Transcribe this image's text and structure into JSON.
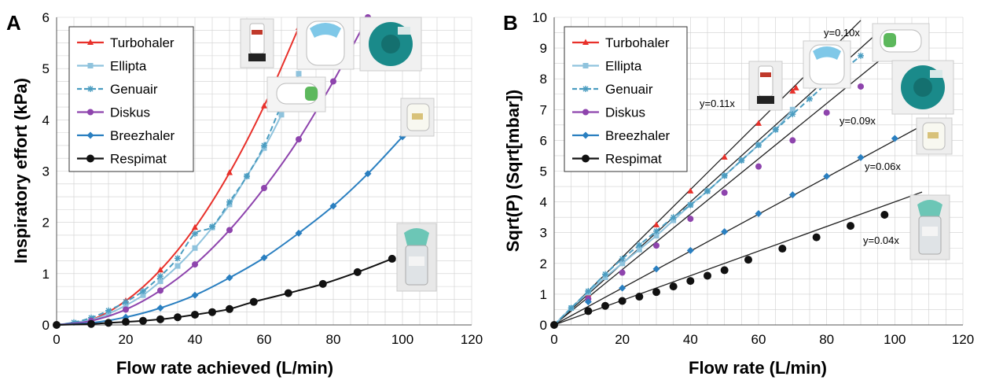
{
  "panels": [
    {
      "letter": "A"
    },
    {
      "letter": "B"
    }
  ],
  "colors": {
    "Turbohaler": "#e8302a",
    "Ellipta": "#8fc3dd",
    "Genuair": "#4a9cc0",
    "Diskus": "#8e44ad",
    "Breezhaler": "#2a7fc0",
    "Respimat": "#111111",
    "grid": "#cfcfcf"
  },
  "chart_data": [
    {
      "type": "line",
      "panel": "A",
      "xlabel": "Flow rate achieved (L/min)",
      "ylabel": "Inspiratory effort (kPa)",
      "xlim": [
        0,
        120
      ],
      "ylim": [
        0,
        6
      ],
      "x_ticks": [
        "0",
        "20",
        "40",
        "60",
        "80",
        "100",
        "120"
      ],
      "y_ticks": [
        "0",
        "1",
        "2",
        "3",
        "4",
        "5",
        "6"
      ],
      "grid": true,
      "legend_position": "top-left",
      "series": [
        {
          "name": "Turbohaler",
          "marker": "triangle",
          "x": [
            0,
            10,
            20,
            30,
            40,
            50,
            60,
            70
          ],
          "y": [
            0,
            0.1,
            0.47,
            1.07,
            1.9,
            2.97,
            4.27,
            5.8
          ]
        },
        {
          "name": "Ellipta",
          "marker": "square",
          "x": [
            0,
            10,
            15,
            20,
            25,
            30,
            35,
            40,
            45,
            50,
            55,
            60,
            65,
            70
          ],
          "y": [
            0,
            0.1,
            0.22,
            0.38,
            0.58,
            0.85,
            1.15,
            1.5,
            1.9,
            2.35,
            2.9,
            3.45,
            4.1,
            4.9
          ]
        },
        {
          "name": "Genuair",
          "marker": "asterisk",
          "x": [
            0,
            5,
            10,
            15,
            20,
            25,
            30,
            35,
            40,
            45,
            50,
            55,
            60,
            65
          ],
          "y": [
            0,
            0.05,
            0.14,
            0.28,
            0.45,
            0.66,
            0.95,
            1.3,
            1.78,
            1.92,
            2.4,
            2.9,
            3.5,
            4.3
          ]
        },
        {
          "name": "Diskus",
          "marker": "circle",
          "x": [
            0,
            10,
            20,
            30,
            40,
            50,
            60,
            70,
            80,
            90
          ],
          "y": [
            0,
            0.08,
            0.3,
            0.67,
            1.18,
            1.85,
            2.67,
            3.62,
            4.75,
            6.0
          ]
        },
        {
          "name": "Breezhaler",
          "marker": "diamond",
          "x": [
            0,
            10,
            20,
            30,
            40,
            50,
            60,
            70,
            80,
            90,
            100
          ],
          "y": [
            0,
            0.04,
            0.15,
            0.33,
            0.58,
            0.92,
            1.31,
            1.79,
            2.32,
            2.95,
            3.67
          ]
        },
        {
          "name": "Respimat",
          "marker": "filled-circle",
          "x": [
            0,
            10,
            15,
            20,
            25,
            30,
            35,
            40,
            45,
            50,
            57,
            67,
            77,
            87,
            97
          ],
          "y": [
            0,
            0.02,
            0.04,
            0.06,
            0.08,
            0.11,
            0.15,
            0.2,
            0.25,
            0.31,
            0.45,
            0.62,
            0.8,
            1.03,
            1.29
          ]
        }
      ]
    },
    {
      "type": "line",
      "panel": "B",
      "xlabel": "Flow rate (L/min)",
      "ylabel": "Sqrt(P) (Sqrt[mbar])",
      "xlim": [
        0,
        120
      ],
      "ylim": [
        0,
        10
      ],
      "x_ticks": [
        "0",
        "20",
        "40",
        "60",
        "80",
        "100",
        "120"
      ],
      "y_ticks": [
        "0",
        "1",
        "2",
        "3",
        "4",
        "5",
        "6",
        "7",
        "8",
        "9",
        "10"
      ],
      "grid": true,
      "legend_position": "top-left",
      "annotations": [
        "y=0.11x",
        "y=0.10x",
        "y=0.09x",
        "y=0.06x",
        "y=0.04x"
      ],
      "fit_lines": [
        {
          "slope": 0.11,
          "x_end": 90
        },
        {
          "slope": 0.1,
          "x_end": 94
        },
        {
          "slope": 0.09,
          "x_end": 98
        },
        {
          "slope": 0.06,
          "x_end": 108
        },
        {
          "slope": 0.04,
          "x_end": 108
        }
      ],
      "series": [
        {
          "name": "Turbohaler",
          "marker": "triangle",
          "x": [
            0,
            10,
            20,
            30,
            40,
            50,
            60,
            70,
            71
          ],
          "y": [
            0,
            1.0,
            2.1,
            3.25,
            4.35,
            5.45,
            6.55,
            7.6,
            7.7
          ]
        },
        {
          "name": "Ellipta",
          "marker": "square",
          "x": [
            0,
            5,
            10,
            15,
            20,
            25,
            30,
            35,
            40,
            45,
            50,
            55,
            60,
            65,
            70
          ],
          "y": [
            0,
            0.55,
            1.05,
            1.55,
            2.0,
            2.45,
            2.9,
            3.4,
            3.9,
            4.35,
            4.85,
            5.35,
            5.85,
            6.35,
            7.0
          ]
        },
        {
          "name": "Genuair",
          "marker": "asterisk",
          "x": [
            0,
            5,
            10,
            15,
            20,
            25,
            30,
            35,
            40,
            45,
            50,
            55,
            60,
            65,
            70,
            75,
            80,
            85,
            90
          ],
          "y": [
            0,
            0.55,
            1.1,
            1.65,
            2.15,
            2.6,
            3.05,
            3.5,
            3.9,
            4.35,
            4.85,
            5.35,
            5.85,
            6.35,
            6.85,
            7.35,
            7.85,
            8.3,
            8.75
          ]
        },
        {
          "name": "Diskus",
          "marker": "circle",
          "x": [
            0,
            10,
            20,
            30,
            40,
            50,
            60,
            70,
            80,
            90
          ],
          "y": [
            0,
            0.85,
            1.7,
            2.58,
            3.45,
            4.3,
            5.15,
            6.0,
            6.9,
            7.75
          ]
        },
        {
          "name": "Breezhaler",
          "marker": "diamond",
          "x": [
            0,
            10,
            20,
            30,
            40,
            50,
            60,
            70,
            80,
            90,
            100
          ],
          "y": [
            0,
            0.75,
            1.2,
            1.82,
            2.42,
            3.03,
            3.62,
            4.23,
            4.83,
            5.44,
            6.06
          ]
        },
        {
          "name": "Respimat",
          "marker": "filled-circle",
          "x": [
            0,
            10,
            15,
            20,
            25,
            30,
            35,
            40,
            45,
            50,
            57,
            67,
            77,
            87,
            97
          ],
          "y": [
            0,
            0.45,
            0.62,
            0.78,
            0.92,
            1.07,
            1.25,
            1.43,
            1.6,
            1.78,
            2.12,
            2.48,
            2.85,
            3.22,
            3.58
          ]
        }
      ]
    }
  ]
}
